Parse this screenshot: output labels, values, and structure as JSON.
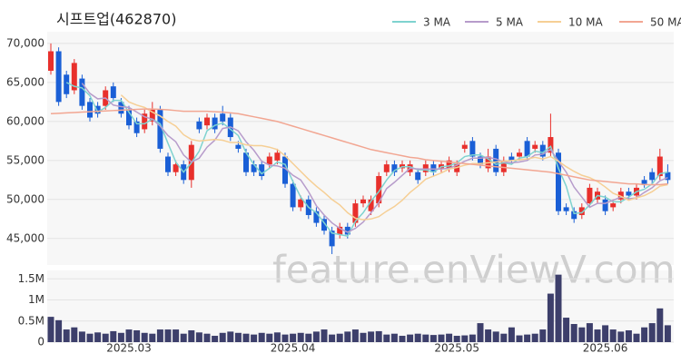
{
  "chart_data": [
    {
      "type": "candlestick",
      "title": "시프트업(462870)",
      "watermark": "feature.enViewV.com",
      "categories": [
        null,
        null,
        null,
        null,
        null,
        null,
        null,
        null,
        null,
        null,
        "2025.03",
        null,
        null,
        null,
        null,
        null,
        null,
        null,
        null,
        null,
        null,
        null,
        null,
        null,
        null,
        null,
        null,
        null,
        null,
        null,
        null,
        "2025.04",
        null,
        null,
        null,
        null,
        null,
        null,
        null,
        null,
        null,
        null,
        null,
        null,
        null,
        null,
        null,
        null,
        null,
        null,
        null,
        null,
        "2025.05",
        null,
        null,
        null,
        null,
        null,
        null,
        null,
        null,
        null,
        null,
        null,
        null,
        null,
        null,
        null,
        null,
        null,
        null,
        "2025.06",
        null,
        null,
        null,
        null,
        null,
        null,
        null,
        null
      ],
      "open": [
        66500,
        69000,
        66000,
        64000,
        65500,
        62500,
        62000,
        62000,
        64500,
        62500,
        61500,
        60000,
        59000,
        60000,
        61500,
        55500,
        53500,
        54500,
        52500,
        60000,
        59500,
        60500,
        61000,
        60500,
        57000,
        56000,
        54500,
        54500,
        54500,
        55000,
        55500,
        52000,
        49000,
        50000,
        48500,
        47500,
        46000,
        45500,
        46500,
        47000,
        49500,
        48500,
        49500,
        53500,
        54500,
        54000,
        53500,
        53500,
        53500,
        54500,
        54000,
        54000,
        53500,
        56500,
        57500,
        55500,
        54000,
        56500,
        53500,
        55500,
        55500,
        57500,
        56500,
        57000,
        56000,
        56000,
        49000,
        48500,
        48000,
        49500,
        50000,
        50000,
        49000,
        50000,
        51000,
        50500,
        52500,
        53500,
        53000,
        53500
      ],
      "high": [
        70000,
        69500,
        66500,
        68000,
        66000,
        63000,
        62500,
        64500,
        65000,
        63000,
        62000,
        60500,
        61500,
        62500,
        62000,
        56000,
        55000,
        55000,
        57500,
        60500,
        61000,
        61000,
        62000,
        61000,
        57500,
        56500,
        55000,
        55000,
        56000,
        56500,
        56000,
        52500,
        50500,
        50500,
        49000,
        48000,
        46500,
        47000,
        47000,
        50000,
        50500,
        50500,
        53500,
        55000,
        55000,
        55000,
        55000,
        54000,
        55000,
        55000,
        55000,
        55500,
        55000,
        57500,
        58000,
        56000,
        56500,
        57000,
        55500,
        56000,
        56500,
        58000,
        57500,
        57500,
        61000,
        56500,
        49500,
        49000,
        49500,
        52000,
        51500,
        50500,
        50000,
        51500,
        51500,
        52000,
        53000,
        54000,
        56500,
        54500
      ],
      "low": [
        66000,
        62000,
        63000,
        63500,
        61500,
        60000,
        60500,
        61500,
        62500,
        60500,
        59000,
        58000,
        58500,
        59500,
        56000,
        53000,
        53000,
        52000,
        51500,
        58500,
        59000,
        58500,
        59500,
        57500,
        56000,
        53000,
        53000,
        52500,
        54000,
        54500,
        51500,
        48500,
        48500,
        47500,
        46500,
        45500,
        43000,
        45000,
        45000,
        46500,
        49000,
        48000,
        49000,
        53000,
        53000,
        53500,
        53000,
        52000,
        53000,
        53000,
        53500,
        53500,
        53000,
        56000,
        55000,
        54000,
        53500,
        53000,
        53000,
        54500,
        55000,
        55000,
        56000,
        55000,
        55500,
        48000,
        48000,
        47000,
        47500,
        49000,
        49500,
        48000,
        48500,
        49500,
        50000,
        50000,
        51500,
        52000,
        52500,
        52000
      ],
      "close": [
        69000,
        62500,
        63500,
        67500,
        62000,
        60500,
        61000,
        64000,
        63000,
        61000,
        59500,
        58500,
        61000,
        61500,
        56500,
        53500,
        54500,
        52500,
        57000,
        59000,
        60500,
        59000,
        60000,
        58000,
        56500,
        53500,
        53500,
        53000,
        55500,
        56000,
        52000,
        49000,
        50000,
        48000,
        47000,
        46000,
        44000,
        46500,
        45500,
        49500,
        50000,
        50000,
        53000,
        54500,
        53500,
        54500,
        54500,
        52500,
        54500,
        53500,
        54500,
        55000,
        54500,
        57000,
        55500,
        54500,
        55500,
        53500,
        55000,
        55000,
        56000,
        55500,
        57000,
        55500,
        58000,
        48500,
        48500,
        47500,
        49000,
        51500,
        51000,
        48500,
        49500,
        51000,
        50500,
        51500,
        52000,
        52500,
        55500,
        52500
      ],
      "up_color": "#e8302c",
      "down_color": "#1a5fd6",
      "series": [
        {
          "name": "3 MA",
          "color": "#7fd3cf",
          "values": [
            null,
            null,
            65000,
            64500,
            64300,
            63300,
            61200,
            61800,
            62700,
            62700,
            61200,
            59700,
            59700,
            60300,
            59700,
            57200,
            54800,
            53500,
            54700,
            56200,
            58800,
            59500,
            59800,
            59000,
            58200,
            56000,
            54500,
            53300,
            54000,
            54800,
            54500,
            52300,
            50300,
            49000,
            48300,
            47000,
            45700,
            45500,
            45300,
            47200,
            48300,
            49800,
            51000,
            52500,
            53700,
            54200,
            54200,
            53800,
            53800,
            53500,
            54200,
            54300,
            54700,
            55500,
            55700,
            55700,
            55200,
            54500,
            54700,
            54500,
            55300,
            55500,
            56200,
            56000,
            56800,
            54000,
            51700,
            48200,
            48300,
            49300,
            50500,
            50300,
            49700,
            49700,
            50300,
            51000,
            51300,
            52000,
            53300,
            53500
          ]
        },
        {
          "name": "5 MA",
          "color": "#b79ccb",
          "values": [
            null,
            null,
            null,
            null,
            64900,
            63600,
            62900,
            63000,
            62100,
            61900,
            61800,
            61200,
            60600,
            60300,
            59400,
            58200,
            57400,
            55700,
            54800,
            55300,
            56700,
            57600,
            59100,
            59300,
            58800,
            57400,
            56300,
            54900,
            54400,
            54300,
            54000,
            53100,
            52500,
            51000,
            49200,
            48000,
            47000,
            46300,
            45800,
            46300,
            47100,
            48300,
            49600,
            51400,
            52200,
            53100,
            54000,
            53900,
            53900,
            53900,
            53900,
            54000,
            54400,
            54900,
            55300,
            55300,
            55400,
            55200,
            54800,
            54700,
            54800,
            55000,
            55700,
            55800,
            56400,
            54900,
            53500,
            51600,
            50300,
            49000,
            49500,
            49500,
            49900,
            50300,
            50100,
            50200,
            50900,
            51500,
            52400,
            52800
          ]
        },
        {
          "name": "10 MA",
          "color": "#f6cf95",
          "values": [
            null,
            null,
            null,
            null,
            null,
            null,
            null,
            null,
            null,
            63400,
            62500,
            62100,
            61800,
            61200,
            60700,
            60000,
            59400,
            58300,
            57700,
            57500,
            57600,
            57700,
            57600,
            57300,
            57300,
            57000,
            56900,
            56900,
            56700,
            56400,
            55600,
            54600,
            53600,
            52600,
            51700,
            50900,
            50000,
            49300,
            48300,
            47600,
            47400,
            47500,
            47800,
            48500,
            49100,
            49900,
            50900,
            51700,
            52600,
            53000,
            53400,
            53900,
            54100,
            54400,
            54600,
            54600,
            54700,
            54800,
            54900,
            55000,
            55100,
            55200,
            55400,
            55200,
            55500,
            54900,
            54200,
            53600,
            53100,
            52800,
            52300,
            51600,
            50800,
            50400,
            49900,
            50200,
            50500,
            51000,
            51700,
            51900
          ]
        },
        {
          "name": "50 MA",
          "color": "#f2a692",
          "values": [
            61000,
            61050,
            61100,
            61150,
            61200,
            61250,
            61300,
            61350,
            61400,
            61450,
            61500,
            61550,
            61600,
            61600,
            61550,
            61500,
            61400,
            61300,
            61300,
            61300,
            61300,
            61250,
            61200,
            61100,
            61000,
            60800,
            60600,
            60400,
            60200,
            60000,
            59700,
            59400,
            59100,
            58800,
            58500,
            58200,
            57900,
            57600,
            57300,
            57000,
            56700,
            56400,
            56200,
            56000,
            55800,
            55600,
            55400,
            55300,
            55100,
            55000,
            54900,
            54800,
            54700,
            54600,
            54500,
            54400,
            54300,
            54200,
            54100,
            54000,
            53900,
            53800,
            53700,
            53600,
            53500,
            53300,
            53100,
            52900,
            52700,
            52500,
            52400,
            52300,
            52200,
            52100,
            52000,
            52000,
            51900,
            51900,
            51900,
            52000
          ]
        }
      ],
      "ylim": [
        41600,
        71500
      ],
      "yticks": [
        {
          "value": 45000,
          "label": "45,000"
        },
        {
          "value": 50000,
          "label": "50,000"
        },
        {
          "value": 55000,
          "label": "55,000"
        },
        {
          "value": 60000,
          "label": "60,000"
        },
        {
          "value": 65000,
          "label": "65,000"
        },
        {
          "value": 70000,
          "label": "70,000"
        }
      ],
      "grid": true
    },
    {
      "type": "bar",
      "color": "#3d3f6b",
      "values": [
        600000,
        520000,
        300000,
        350000,
        250000,
        200000,
        230000,
        200000,
        260000,
        220000,
        300000,
        280000,
        220000,
        200000,
        300000,
        300000,
        300000,
        200000,
        280000,
        230000,
        200000,
        150000,
        220000,
        250000,
        220000,
        200000,
        180000,
        220000,
        200000,
        230000,
        180000,
        200000,
        220000,
        200000,
        250000,
        300000,
        180000,
        200000,
        250000,
        300000,
        220000,
        250000,
        260000,
        180000,
        200000,
        150000,
        180000,
        200000,
        180000,
        170000,
        180000,
        200000,
        150000,
        160000,
        180000,
        450000,
        300000,
        250000,
        200000,
        350000,
        160000,
        180000,
        200000,
        300000,
        1150000,
        1600000,
        580000,
        430000,
        350000,
        450000,
        300000,
        400000,
        300000,
        250000,
        280000,
        200000,
        350000,
        450000,
        800000,
        400000
      ],
      "ylim": [
        0,
        1700000
      ],
      "yticks": [
        0,
        {
          "value": 500000,
          "label": "0.5M"
        },
        {
          "value": 1000000,
          "label": "1M"
        },
        {
          "value": 1500000,
          "label": "1.5M"
        }
      ],
      "grid": true
    }
  ]
}
